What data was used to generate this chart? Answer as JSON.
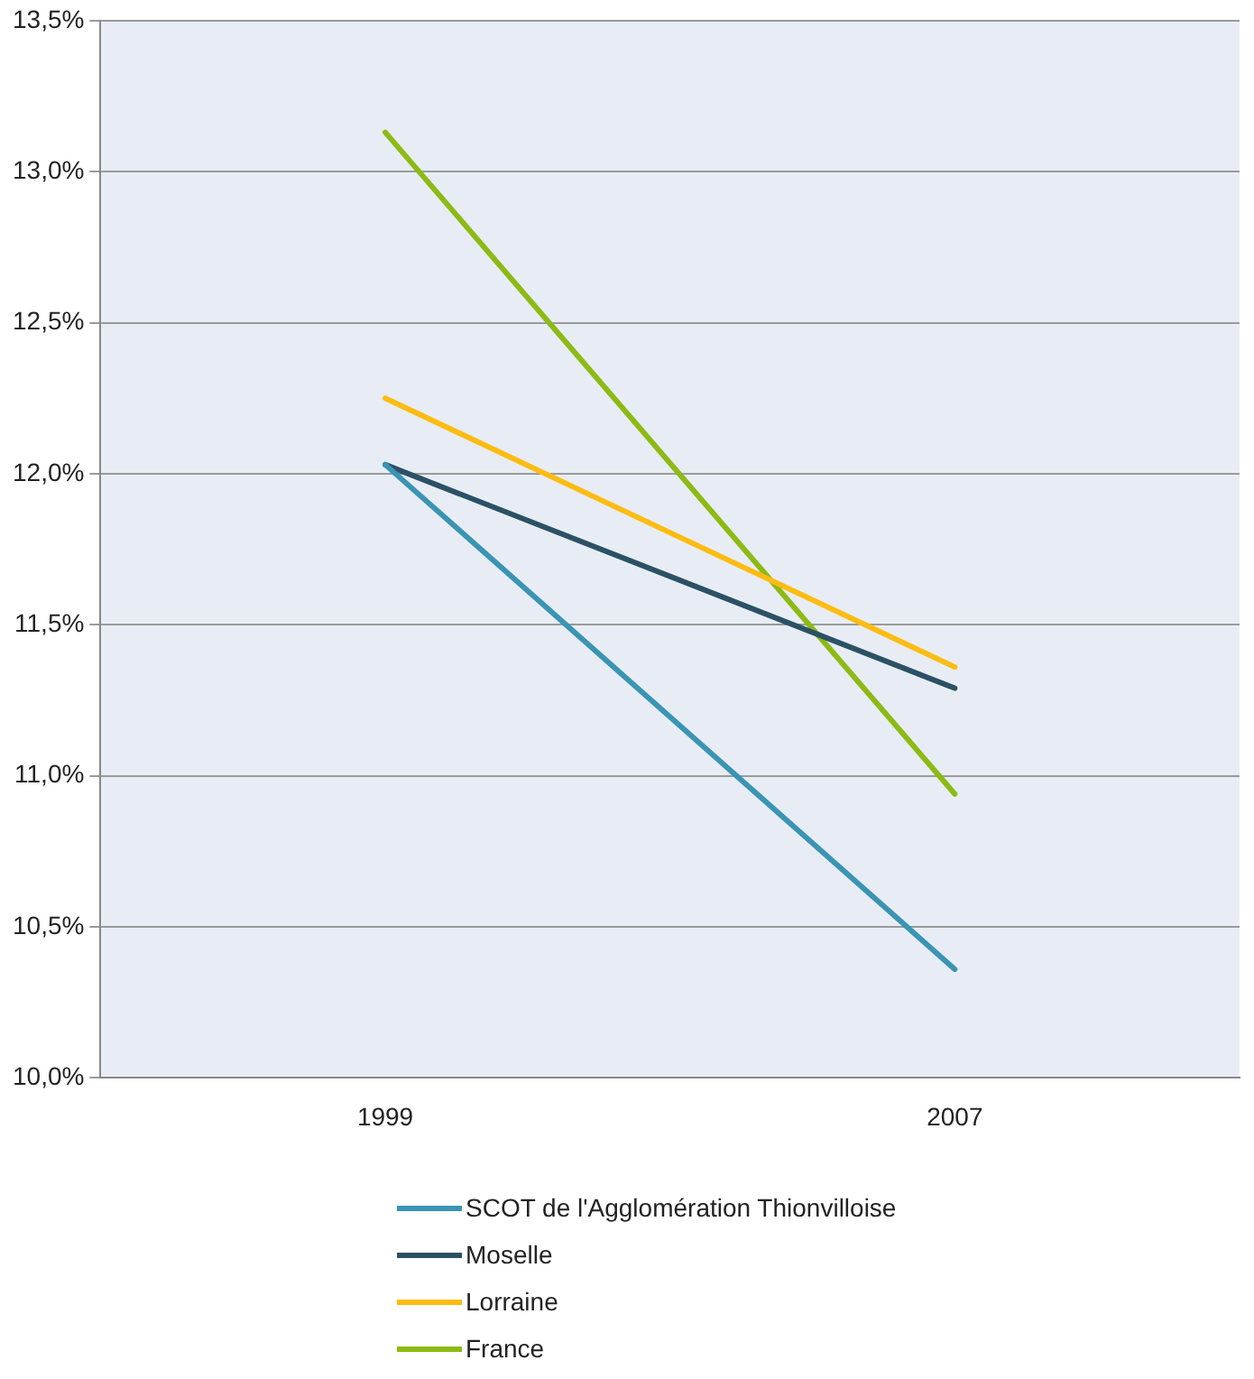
{
  "chart_data": {
    "type": "line",
    "categories": [
      "1999",
      "2007"
    ],
    "series": [
      {
        "name": "SCOT de l'Agglomération Thionvilloise",
        "color": "#3a94b3",
        "values": [
          12.03,
          10.36
        ]
      },
      {
        "name": "Moselle",
        "color": "#2b5165",
        "values": [
          12.03,
          11.29
        ]
      },
      {
        "name": "Lorraine",
        "color": "#fcbc12",
        "values": [
          12.25,
          11.36
        ]
      },
      {
        "name": "France",
        "color": "#8dba14",
        "values": [
          13.13,
          10.94
        ]
      }
    ],
    "ylim": [
      10,
      13.5
    ],
    "yticks": [
      {
        "value": 10,
        "label": "10,0%"
      },
      {
        "value": 10.5,
        "label": "10,5%"
      },
      {
        "value": 11,
        "label": "11,0%"
      },
      {
        "value": 11.5,
        "label": "11,5%"
      },
      {
        "value": 12,
        "label": "12,0%"
      },
      {
        "value": 12.5,
        "label": "12,5%"
      },
      {
        "value": 13,
        "label": "13,0%"
      },
      {
        "value": 13.5,
        "label": "13,5%"
      }
    ],
    "grid": "y",
    "legend": "bottom",
    "marker": "none",
    "line_style": "solid"
  }
}
